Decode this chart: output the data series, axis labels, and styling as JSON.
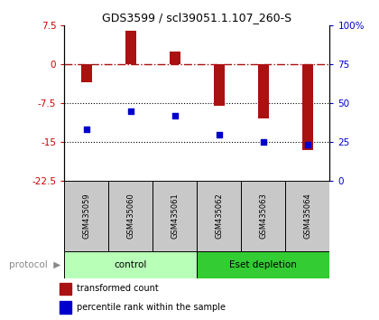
{
  "title": "GDS3599 / scl39051.1.107_260-S",
  "categories": [
    "GSM435059",
    "GSM435060",
    "GSM435061",
    "GSM435062",
    "GSM435063",
    "GSM435064"
  ],
  "red_values": [
    -3.5,
    6.5,
    2.5,
    -8.0,
    -10.5,
    -16.5
  ],
  "blue_values": [
    -12.5,
    -9.0,
    -10.0,
    -13.5,
    -15.0,
    -15.5
  ],
  "red_color": "#aa1111",
  "blue_color": "#0000cc",
  "left_ylim": [
    -22.5,
    7.5
  ],
  "left_yticks": [
    7.5,
    0,
    -7.5,
    -15,
    -22.5
  ],
  "left_yticklabels": [
    "7.5",
    "0",
    "-7.5",
    "-15",
    "-22.5"
  ],
  "right_ylim": [
    0,
    100
  ],
  "right_yticks": [
    0,
    25,
    50,
    75,
    100
  ],
  "right_yticklabels": [
    "0",
    "25",
    "50",
    "75",
    "100%"
  ],
  "groups": [
    {
      "label": "control",
      "start": 0,
      "end": 3,
      "color": "#b8ffb8"
    },
    {
      "label": "Eset depletion",
      "start": 3,
      "end": 6,
      "color": "#33cc33"
    }
  ],
  "legend_items": [
    {
      "label": "transformed count",
      "color": "#aa1111"
    },
    {
      "label": "percentile rank within the sample",
      "color": "#0000cc"
    }
  ],
  "bar_width": 0.25,
  "dotted_lines": [
    -7.5,
    -15
  ],
  "bg_color": "#ffffff",
  "label_color_left": "#cc0000",
  "label_color_right": "#0000cc",
  "gray_label_color": "#888888",
  "sample_bg": "#c8c8c8"
}
